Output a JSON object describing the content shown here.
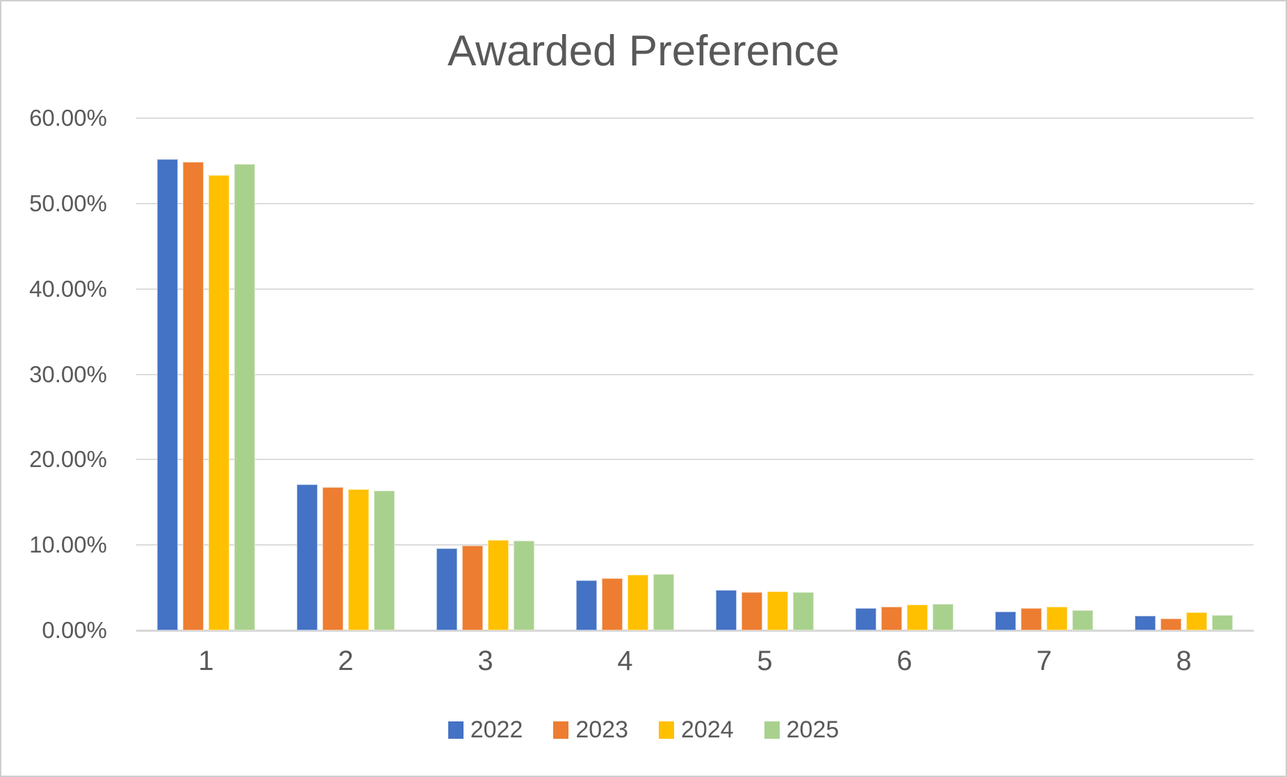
{
  "chart_data": {
    "type": "bar",
    "title": "Awarded Preference",
    "categories": [
      "1",
      "2",
      "3",
      "4",
      "5",
      "6",
      "7",
      "8"
    ],
    "series": [
      {
        "name": "2022",
        "color": "#4472C4",
        "values": [
          55.2,
          17.1,
          9.6,
          5.9,
          4.7,
          2.6,
          2.2,
          1.7
        ]
      },
      {
        "name": "2023",
        "color": "#ED7D31",
        "values": [
          54.9,
          16.8,
          9.9,
          6.1,
          4.5,
          2.8,
          2.6,
          1.4
        ]
      },
      {
        "name": "2024",
        "color": "#FFC000",
        "values": [
          53.3,
          16.5,
          10.6,
          6.5,
          4.6,
          3.0,
          2.8,
          2.1
        ]
      },
      {
        "name": "2025",
        "color": "#A9D18E",
        "values": [
          54.6,
          16.4,
          10.5,
          6.6,
          4.5,
          3.1,
          2.4,
          1.8
        ]
      }
    ],
    "xlabel": "",
    "ylabel": "",
    "ylim": [
      0,
      60
    ],
    "y_tick_step": 10,
    "y_tick_labels": [
      "0.00%",
      "10.00%",
      "20.00%",
      "30.00%",
      "40.00%",
      "50.00%",
      "60.00%"
    ],
    "grid": "horizontal",
    "legend_position": "bottom"
  },
  "style_colors": {
    "gridline": "#dcdcdc",
    "axis_line": "#d6d6d6",
    "text": "#595959",
    "background": "#ffffff"
  }
}
